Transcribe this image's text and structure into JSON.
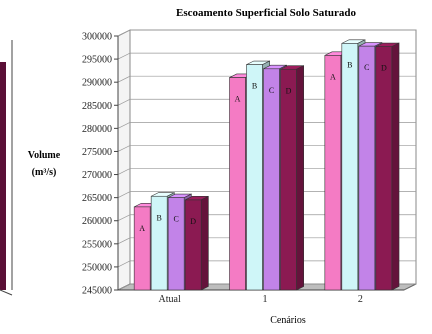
{
  "chart_data": {
    "type": "bar",
    "title": "Escoamento Superficial Solo Saturado",
    "xlabel": "Cenários",
    "ylabel": "Volume",
    "ylabel_unit": "(m³/s)",
    "categories": [
      "Atual",
      "1",
      "2"
    ],
    "series": [
      {
        "name": "A",
        "values": [
          263000,
          291000,
          295800
        ],
        "color": "#f47bc4"
      },
      {
        "name": "B",
        "values": [
          265300,
          293800,
          298400
        ],
        "color": "#cff6f8"
      },
      {
        "name": "C",
        "values": [
          265000,
          292900,
          297800
        ],
        "color": "#c283e8"
      },
      {
        "name": "D",
        "values": [
          264500,
          292800,
          297700
        ],
        "color": "#8b1a52"
      }
    ],
    "ylim": [
      245000,
      300000
    ],
    "yticks": [
      245000,
      250000,
      255000,
      260000,
      265000,
      270000,
      275000,
      280000,
      285000,
      290000,
      295000,
      300000
    ],
    "grid": true,
    "legend": "none"
  }
}
